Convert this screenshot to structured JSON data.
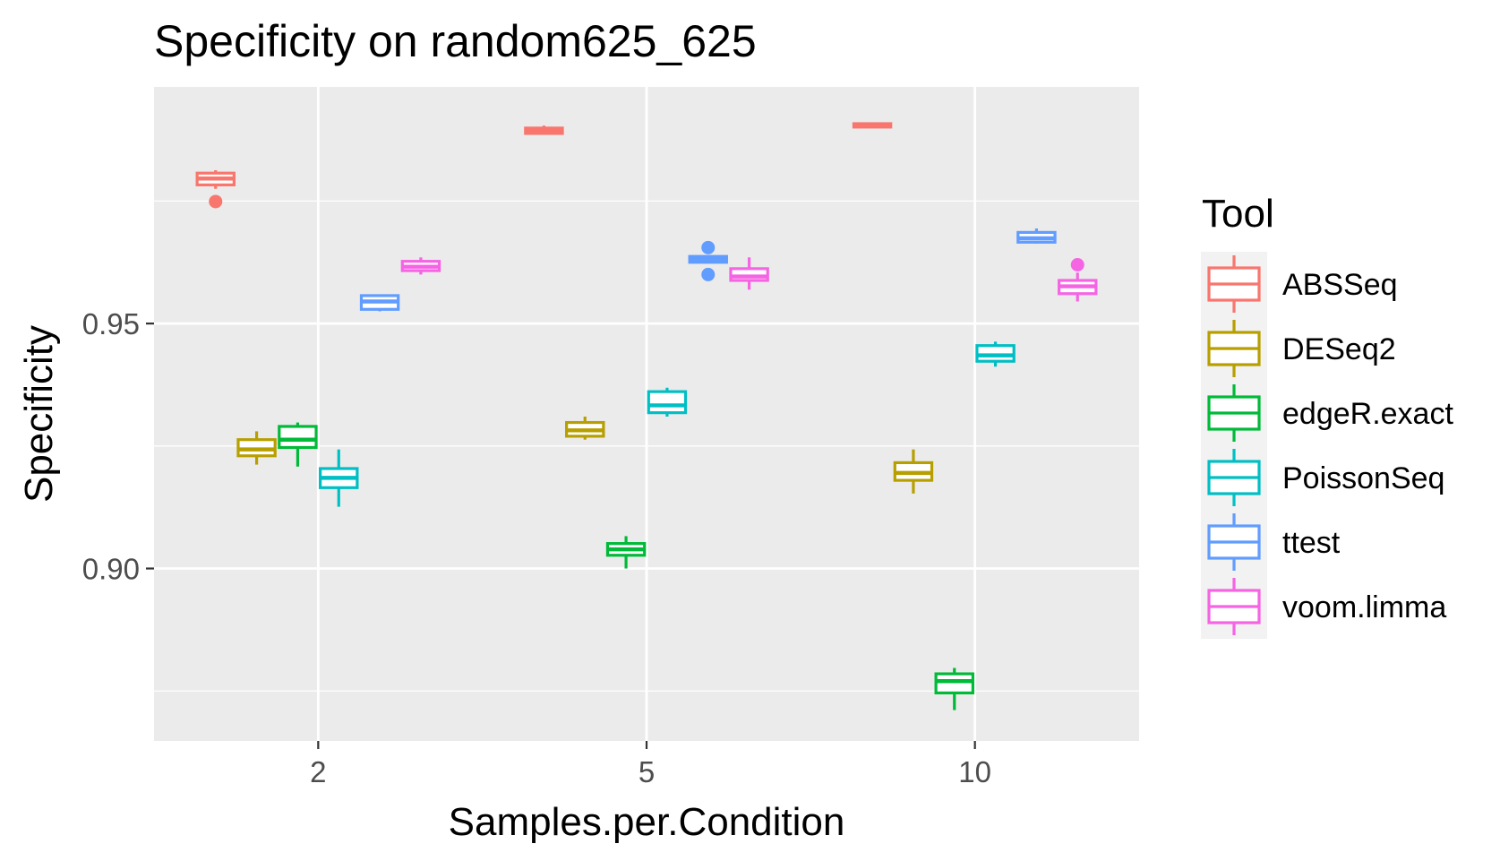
{
  "chart_data": {
    "type": "boxplot",
    "title": "Specificity on random625_625",
    "xlabel": "Samples.per.Condition",
    "ylabel": "Specificity",
    "categories": [
      "2",
      "5",
      "10"
    ],
    "y_ticks": [
      0.9,
      0.95
    ],
    "y_tick_labels": [
      "0.90",
      "0.95"
    ],
    "ylim": [
      0.8648,
      0.9983
    ],
    "grid": true,
    "legend": {
      "title": "Tool",
      "position": "right"
    },
    "series": [
      {
        "name": "ABSSeq",
        "color": "#F8766D",
        "boxes": [
          {
            "category": "2",
            "min": 0.9775,
            "q1": 0.9783,
            "median": 0.9796,
            "q3": 0.9807,
            "max": 0.9813,
            "outliers": [
              0.9749
            ]
          },
          {
            "category": "5",
            "min": 0.9886,
            "q1": 0.9888,
            "median": 0.9893,
            "q3": 0.9899,
            "max": 0.9904,
            "outliers": []
          },
          {
            "category": "10",
            "min": 0.9899,
            "q1": 0.9901,
            "median": 0.9904,
            "q3": 0.9908,
            "max": 0.991,
            "outliers": []
          }
        ]
      },
      {
        "name": "DESeq2",
        "color": "#B79F00",
        "boxes": [
          {
            "category": "2",
            "min": 0.9212,
            "q1": 0.923,
            "median": 0.9243,
            "q3": 0.9263,
            "max": 0.928,
            "outliers": []
          },
          {
            "category": "5",
            "min": 0.9263,
            "q1": 0.927,
            "median": 0.9282,
            "q3": 0.9298,
            "max": 0.931,
            "outliers": []
          },
          {
            "category": "10",
            "min": 0.9153,
            "q1": 0.918,
            "median": 0.9195,
            "q3": 0.9216,
            "max": 0.9243,
            "outliers": []
          }
        ]
      },
      {
        "name": "edgeR.exact",
        "color": "#00BA38",
        "boxes": [
          {
            "category": "2",
            "min": 0.9208,
            "q1": 0.9247,
            "median": 0.9263,
            "q3": 0.929,
            "max": 0.9298,
            "outliers": []
          },
          {
            "category": "5",
            "min": 0.9,
            "q1": 0.9027,
            "median": 0.9039,
            "q3": 0.9051,
            "max": 0.9066,
            "outliers": []
          },
          {
            "category": "10",
            "min": 0.8711,
            "q1": 0.8746,
            "median": 0.877,
            "q3": 0.8785,
            "max": 0.8797,
            "outliers": []
          }
        ]
      },
      {
        "name": "PoissonSeq",
        "color": "#00BFC4",
        "boxes": [
          {
            "category": "2",
            "min": 0.9126,
            "q1": 0.9165,
            "median": 0.9185,
            "q3": 0.9204,
            "max": 0.9243,
            "outliers": []
          },
          {
            "category": "5",
            "min": 0.931,
            "q1": 0.9318,
            "median": 0.9333,
            "q3": 0.9361,
            "max": 0.9369,
            "outliers": []
          },
          {
            "category": "10",
            "min": 0.9412,
            "q1": 0.9423,
            "median": 0.9435,
            "q3": 0.9455,
            "max": 0.9463,
            "outliers": []
          }
        ]
      },
      {
        "name": "ttest",
        "color": "#619CFF",
        "boxes": [
          {
            "category": "2",
            "min": 0.9525,
            "q1": 0.9529,
            "median": 0.9545,
            "q3": 0.9557,
            "max": 0.9557,
            "outliers": []
          },
          {
            "category": "5",
            "min": 0.9623,
            "q1": 0.9625,
            "median": 0.9631,
            "q3": 0.9637,
            "max": 0.964,
            "outliers": [
              0.96,
              0.9655
            ]
          },
          {
            "category": "10",
            "min": 0.9663,
            "q1": 0.9666,
            "median": 0.9674,
            "q3": 0.9686,
            "max": 0.9694,
            "outliers": []
          }
        ]
      },
      {
        "name": "voom.limma",
        "color": "#F564E3",
        "boxes": [
          {
            "category": "2",
            "min": 0.96,
            "q1": 0.9608,
            "median": 0.9616,
            "q3": 0.9627,
            "max": 0.9635,
            "outliers": []
          },
          {
            "category": "5",
            "min": 0.9569,
            "q1": 0.9588,
            "median": 0.9596,
            "q3": 0.9612,
            "max": 0.9635,
            "outliers": []
          },
          {
            "category": "10",
            "min": 0.9545,
            "q1": 0.9561,
            "median": 0.9576,
            "q3": 0.9588,
            "max": 0.9604,
            "outliers": [
              0.962
            ]
          }
        ]
      }
    ]
  }
}
